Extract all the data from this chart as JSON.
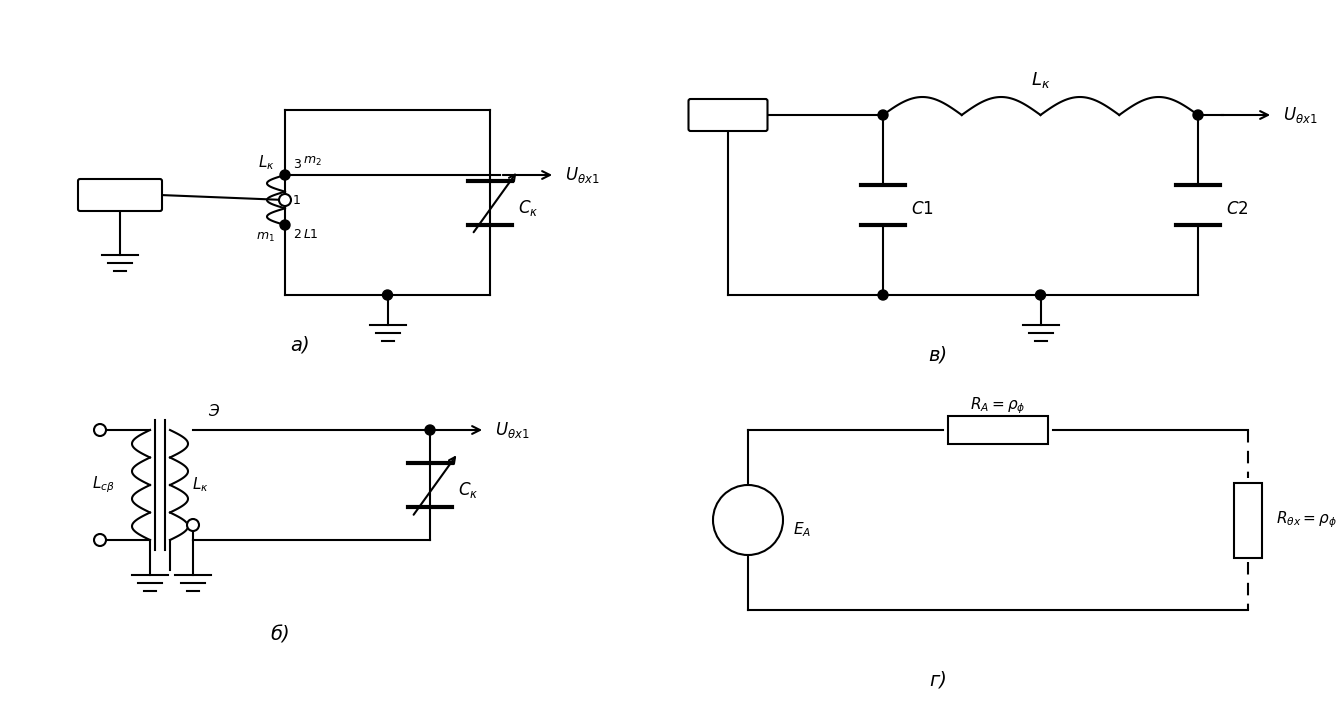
{
  "bg_color": "#ffffff",
  "line_color": "#000000",
  "lw": 1.5,
  "label_a": "а)",
  "label_b": "б)",
  "label_v": "в)",
  "label_g": "г)"
}
